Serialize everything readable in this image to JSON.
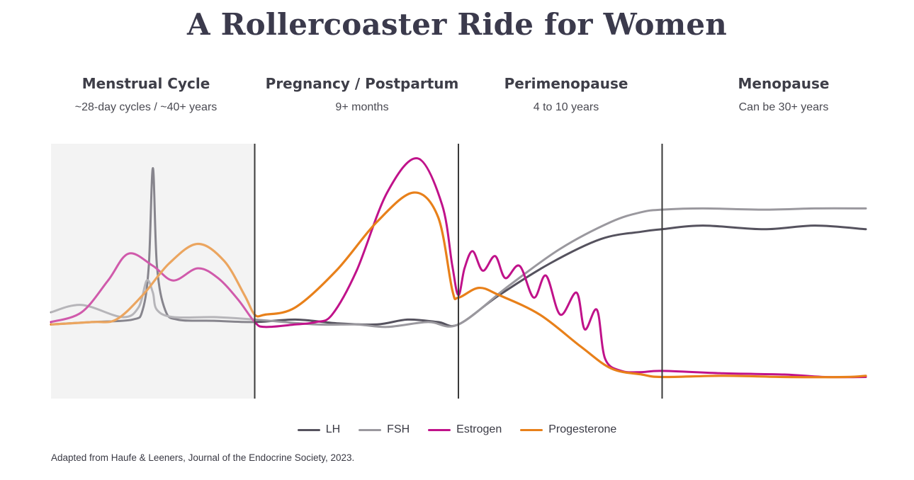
{
  "title": "A Rollercoaster Ride for Women",
  "phases": [
    {
      "name": "Menstrual Cycle",
      "duration": "~28-day cycles / ~40+ years"
    },
    {
      "name": "Pregnancy / Postpartum",
      "duration": "9+ months"
    },
    {
      "name": "Perimenopause",
      "duration": "4 to 10 years"
    },
    {
      "name": "Menopause",
      "duration": "Can be 30+ years"
    }
  ],
  "legend": [
    {
      "name": "LH",
      "color": "#55525e"
    },
    {
      "name": "FSH",
      "color": "#9a989e"
    },
    {
      "name": "Estrogen",
      "color": "#c0128a"
    },
    {
      "name": "Progesterone",
      "color": "#e8801a"
    }
  ],
  "source": "Adapted from Haufe & Leeners, Journal of the Endocrine Society, 2023.",
  "chart_data": {
    "type": "line",
    "title": "A Rollercoaster Ride for Women",
    "xlabel": "",
    "ylabel": "",
    "x_units": "timeline position within life phases (0–4, each unit one phase)",
    "y_units": "relative hormone level (0–100, unlabeled)",
    "xlim": [
      0,
      4
    ],
    "ylim": [
      0,
      100
    ],
    "grid": false,
    "legend_position": "bottom-center",
    "phase_boundaries": [
      1,
      2,
      3
    ],
    "shaded_phase": 0,
    "series": [
      {
        "name": "LH",
        "color": "#55525e",
        "points": [
          [
            0,
            26
          ],
          [
            0.2,
            27
          ],
          [
            0.4,
            28
          ],
          [
            0.45,
            32
          ],
          [
            0.48,
            50
          ],
          [
            0.5,
            90
          ],
          [
            0.52,
            50
          ],
          [
            0.56,
            32
          ],
          [
            0.62,
            28
          ],
          [
            0.8,
            27.5
          ],
          [
            1.0,
            27
          ],
          [
            1.2,
            28
          ],
          [
            1.4,
            26.5
          ],
          [
            1.6,
            26
          ],
          [
            1.75,
            28
          ],
          [
            1.9,
            27
          ],
          [
            2.0,
            26
          ],
          [
            2.2,
            38
          ],
          [
            2.45,
            51
          ],
          [
            2.7,
            61
          ],
          [
            2.9,
            64
          ],
          [
            3.0,
            65
          ],
          [
            3.2,
            66.5
          ],
          [
            3.5,
            65
          ],
          [
            3.75,
            66.5
          ],
          [
            4.0,
            65
          ]
        ]
      },
      {
        "name": "FSH",
        "color": "#9a989e",
        "points": [
          [
            0,
            31
          ],
          [
            0.15,
            34
          ],
          [
            0.35,
            29
          ],
          [
            0.43,
            33
          ],
          [
            0.47,
            44
          ],
          [
            0.5,
            39
          ],
          [
            0.52,
            32
          ],
          [
            0.6,
            29
          ],
          [
            0.8,
            29
          ],
          [
            1.0,
            28
          ],
          [
            1.3,
            26
          ],
          [
            1.5,
            26
          ],
          [
            1.65,
            25
          ],
          [
            1.85,
            27
          ],
          [
            2.0,
            26
          ],
          [
            2.25,
            42
          ],
          [
            2.5,
            57
          ],
          [
            2.75,
            68
          ],
          [
            2.9,
            72
          ],
          [
            3.0,
            73
          ],
          [
            3.2,
            73.5
          ],
          [
            3.5,
            73
          ],
          [
            3.75,
            73.5
          ],
          [
            4.0,
            73.5
          ]
        ]
      },
      {
        "name": "Estrogen",
        "color": "#c0128a",
        "points": [
          [
            0,
            27
          ],
          [
            0.15,
            31
          ],
          [
            0.28,
            44
          ],
          [
            0.38,
            55
          ],
          [
            0.5,
            50
          ],
          [
            0.6,
            44
          ],
          [
            0.72,
            49
          ],
          [
            0.82,
            45
          ],
          [
            0.92,
            36
          ],
          [
            1.0,
            27
          ],
          [
            1.05,
            25
          ],
          [
            1.2,
            26
          ],
          [
            1.3,
            27
          ],
          [
            1.38,
            30
          ],
          [
            1.5,
            48
          ],
          [
            1.65,
            80
          ],
          [
            1.8,
            94
          ],
          [
            1.92,
            75
          ],
          [
            1.97,
            50
          ],
          [
            2.0,
            38
          ],
          [
            2.03,
            49
          ],
          [
            2.07,
            56
          ],
          [
            2.12,
            48
          ],
          [
            2.18,
            54
          ],
          [
            2.23,
            45
          ],
          [
            2.3,
            50
          ],
          [
            2.37,
            37
          ],
          [
            2.43,
            46
          ],
          [
            2.5,
            30
          ],
          [
            2.58,
            39
          ],
          [
            2.62,
            24
          ],
          [
            2.68,
            32
          ],
          [
            2.72,
            12
          ],
          [
            2.8,
            7
          ],
          [
            2.9,
            6.5
          ],
          [
            3.0,
            7
          ],
          [
            3.3,
            6
          ],
          [
            3.6,
            5.5
          ],
          [
            3.8,
            4.5
          ],
          [
            4.0,
            4.5
          ]
        ]
      },
      {
        "name": "Progesterone",
        "color": "#e8801a",
        "points": [
          [
            0,
            26
          ],
          [
            0.2,
            27
          ],
          [
            0.32,
            28
          ],
          [
            0.45,
            38
          ],
          [
            0.58,
            51
          ],
          [
            0.72,
            59
          ],
          [
            0.85,
            52
          ],
          [
            0.95,
            38
          ],
          [
            1.0,
            30
          ],
          [
            1.05,
            30
          ],
          [
            1.2,
            33
          ],
          [
            1.4,
            48
          ],
          [
            1.6,
            68
          ],
          [
            1.78,
            80
          ],
          [
            1.9,
            70
          ],
          [
            1.97,
            40
          ],
          [
            2.0,
            37
          ],
          [
            2.1,
            41
          ],
          [
            2.2,
            38
          ],
          [
            2.4,
            30
          ],
          [
            2.6,
            17
          ],
          [
            2.75,
            8
          ],
          [
            2.9,
            5.5
          ],
          [
            3.0,
            4.5
          ],
          [
            3.3,
            5
          ],
          [
            3.6,
            4.5
          ],
          [
            3.9,
            4.5
          ],
          [
            4.0,
            5
          ]
        ]
      }
    ]
  }
}
